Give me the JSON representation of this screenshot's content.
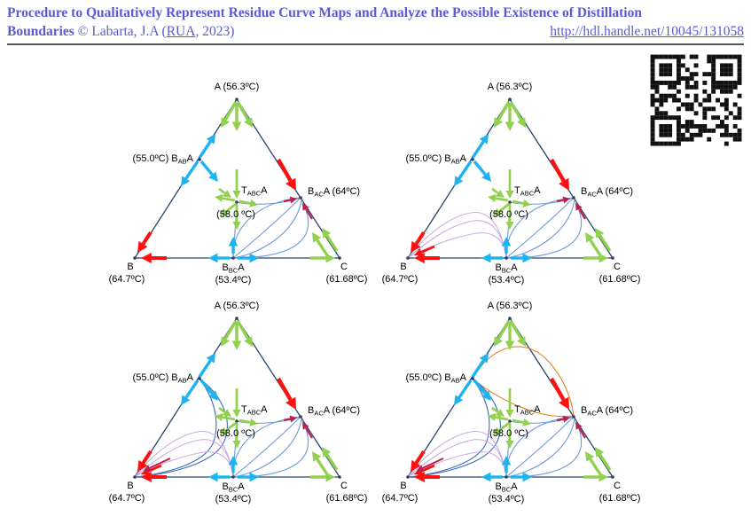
{
  "header": {
    "title_line1": "Procedure to Qualitatively Represent Residue Curve Maps and Analyze the Possible Existence of Distillation",
    "title_line2_bold": "Boundaries",
    "credit_prefix": "© Labarta, J.A (",
    "credit_link": "RUA",
    "credit_suffix": ", 2023)",
    "url": "http://hdl.handle.net/10045/131058",
    "accent_color": "#5a5ad6"
  },
  "qr": {
    "semantic": "qr-code-link-to-handle",
    "modules": 21
  },
  "chart_data": {
    "type": "ternary-residue-curve-map-grid",
    "title": "Qualitative residue curve maps of ternary system A-B-C with distillation boundaries",
    "grid": "2x2 panels, progressively adding residue-curve families",
    "vertices": {
      "A": {
        "text": "A (56.3ºC)",
        "position": "top",
        "behavior": "unstable-node",
        "arrow_color_name": "green"
      },
      "B": {
        "name": "B",
        "temp": "(64.7ºC)",
        "position": "bottom-left",
        "behavior": "stable-node",
        "arrow_color_name": "red"
      },
      "C": {
        "name": "C",
        "temp": "(61.68ºC)",
        "position": "bottom-right",
        "behavior": "saddle",
        "arrow_color_name": "green"
      }
    },
    "azeotropes": {
      "BAB": {
        "parts": [
          "(55.0ºC) B",
          "AB",
          "A"
        ],
        "location": "A-B edge",
        "temp_value": 55.0,
        "behavior": "unstable-node",
        "arrow_color_name": "cyan"
      },
      "BAC": {
        "parts": [
          "B",
          "AC",
          "A (64ºC)"
        ],
        "location": "A-C edge",
        "temp_value": 64,
        "behavior": "stable-node",
        "arrow_color_name": "red-crimson"
      },
      "BBC": {
        "parts": [
          "B",
          "BC",
          "A"
        ],
        "temp": "(53.4ºC)",
        "location": "B-C edge",
        "temp_value": 53.4,
        "behavior": "unstable-node",
        "arrow_color_name": "cyan"
      },
      "TABC": {
        "parts": [
          "T",
          "ABC",
          "A"
        ],
        "temp": "(58.0 ºC)",
        "location": "interior",
        "temp_value": 58.0,
        "behavior": "saddle",
        "arrow_color_name": "green"
      }
    },
    "panels": [
      {
        "id": 1,
        "families": [
          "blue"
        ]
      },
      {
        "id": 2,
        "families": [
          "blue",
          "pink"
        ]
      },
      {
        "id": 3,
        "families": [
          "blue",
          "pink",
          "darkblue"
        ]
      },
      {
        "id": 4,
        "families": [
          "blue",
          "pink",
          "darkblue",
          "orange"
        ]
      }
    ],
    "family_descriptions": {
      "blue": "residue curves from BBC-A azeotrope to BAC-A azeotrope",
      "pink": "residue curves from BBC-A azeotrope to vertex B",
      "darkblue": "residue curves from BAB-A azeotrope to vertex B",
      "orange": "residue curves from BAB-A azeotrope to BAC-A azeotrope"
    },
    "colors": {
      "edge": "#24456e",
      "green": "#92d050",
      "cyan": "#1cb4f0",
      "red": "#fe1010",
      "crimson": "#bc2050",
      "blue_curve": "#6d9bd8",
      "darkblue_curve": "#3c6db8",
      "pink_curve": "#c9aede",
      "orange_curve": "#e0821e",
      "dot": "#3a3a55",
      "label": "#000000"
    }
  }
}
